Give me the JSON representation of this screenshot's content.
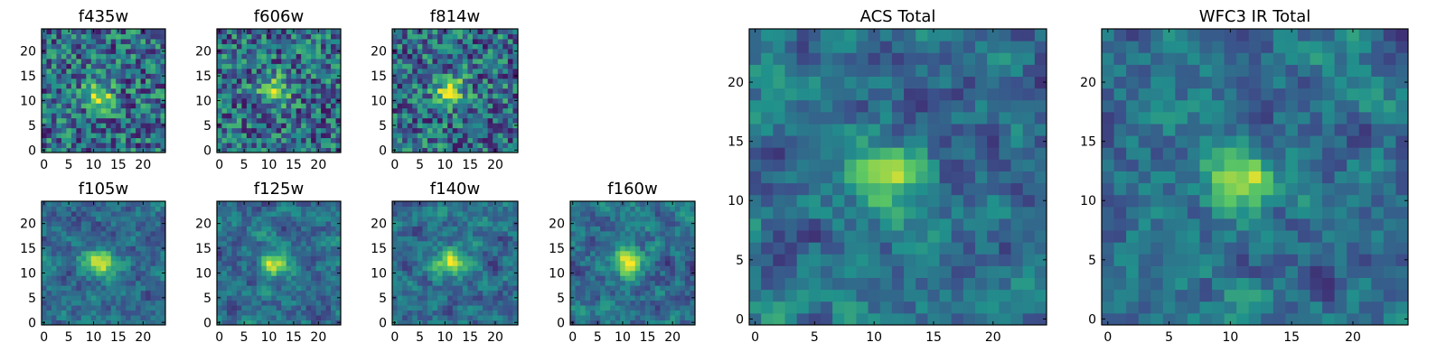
{
  "figure": {
    "colormap": [
      "#440154",
      "#3b528b",
      "#21918c",
      "#5ec962",
      "#fde725"
    ]
  },
  "chart_data": [
    {
      "type": "heatmap",
      "title": "f435w",
      "xlim": [
        0,
        24
      ],
      "ylim": [
        0,
        24
      ],
      "xticks": [
        0,
        5,
        10,
        15,
        20
      ],
      "yticks": [
        0,
        5,
        10,
        15,
        20
      ],
      "source_peak": {
        "x": 11,
        "y": 11
      },
      "grid": false
    },
    {
      "type": "heatmap",
      "title": "f606w",
      "xlim": [
        0,
        24
      ],
      "ylim": [
        0,
        24
      ],
      "xticks": [
        0,
        5,
        10,
        15,
        20
      ],
      "yticks": [
        0,
        5,
        10,
        15,
        20
      ],
      "source_peak": {
        "x": 11,
        "y": 12
      },
      "grid": false
    },
    {
      "type": "heatmap",
      "title": "f814w",
      "xlim": [
        0,
        24
      ],
      "ylim": [
        0,
        24
      ],
      "xticks": [
        0,
        5,
        10,
        15,
        20
      ],
      "yticks": [
        0,
        5,
        10,
        15,
        20
      ],
      "source_peak": {
        "x": 11,
        "y": 12
      },
      "grid": false
    },
    {
      "type": "heatmap",
      "title": "f105w",
      "xlim": [
        0,
        24
      ],
      "ylim": [
        0,
        24
      ],
      "xticks": [
        0,
        5,
        10,
        15,
        20
      ],
      "yticks": [
        0,
        5,
        10,
        15,
        20
      ],
      "source_peak": {
        "x": 11,
        "y": 12
      },
      "grid": false
    },
    {
      "type": "heatmap",
      "title": "f125w",
      "xlim": [
        0,
        24
      ],
      "ylim": [
        0,
        24
      ],
      "xticks": [
        0,
        5,
        10,
        15,
        20
      ],
      "yticks": [
        0,
        5,
        10,
        15,
        20
      ],
      "source_peak": {
        "x": 11,
        "y": 12
      },
      "grid": false
    },
    {
      "type": "heatmap",
      "title": "f140w",
      "xlim": [
        0,
        24
      ],
      "ylim": [
        0,
        24
      ],
      "xticks": [
        0,
        5,
        10,
        15,
        20
      ],
      "yticks": [
        0,
        5,
        10,
        15,
        20
      ],
      "source_peak": {
        "x": 11,
        "y": 12
      },
      "grid": false
    },
    {
      "type": "heatmap",
      "title": "f160w",
      "xlim": [
        0,
        24
      ],
      "ylim": [
        0,
        24
      ],
      "xticks": [
        0,
        5,
        10,
        15,
        20
      ],
      "yticks": [
        0,
        5,
        10,
        15,
        20
      ],
      "source_peak": {
        "x": 11,
        "y": 12
      },
      "grid": false
    },
    {
      "type": "heatmap",
      "title": "ACS Total",
      "xlim": [
        0,
        24
      ],
      "ylim": [
        0,
        24
      ],
      "xticks": [
        0,
        5,
        10,
        15,
        20
      ],
      "yticks": [
        0,
        5,
        10,
        15,
        20
      ],
      "source_peak": {
        "x": 11,
        "y": 12
      },
      "grid": false
    },
    {
      "type": "heatmap",
      "title": "WFC3 IR Total",
      "xlim": [
        0,
        24
      ],
      "ylim": [
        0,
        24
      ],
      "xticks": [
        0,
        5,
        10,
        15,
        20
      ],
      "yticks": [
        0,
        5,
        10,
        15,
        20
      ],
      "source_peak": {
        "x": 11,
        "y": 12
      },
      "grid": false
    }
  ]
}
